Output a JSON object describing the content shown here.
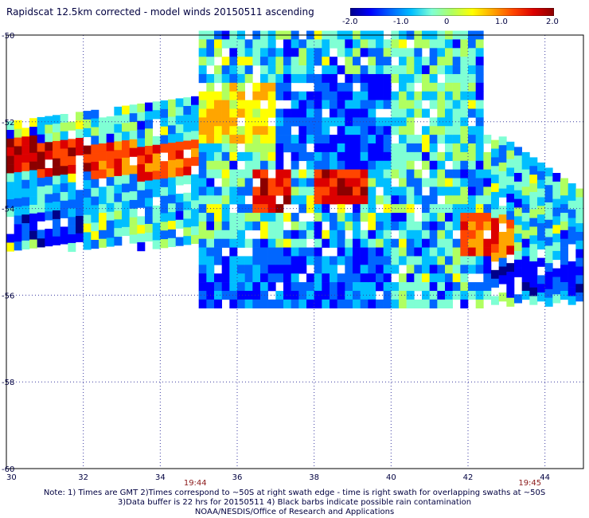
{
  "title": "Rapidscat 12.5km corrected - model winds 20150511 ascending",
  "colorbar": {
    "min": -2.0,
    "max": 2.0,
    "tick_labels": [
      "-2.0",
      "-1.0",
      "0",
      "1.0",
      "2.0"
    ],
    "tick_values": [
      -2.0,
      -1.0,
      0,
      1.0,
      2.0
    ],
    "colors": [
      "#00008b",
      "#0000ff",
      "#0066ff",
      "#00bfff",
      "#7fffd4",
      "#b0ff60",
      "#ffff00",
      "#ffa500",
      "#ff4500",
      "#dc0000",
      "#8b0000"
    ]
  },
  "times": [
    {
      "label": "19:44",
      "lon": 34.9
    },
    {
      "label": "19:45",
      "lon": 43.6
    }
  ],
  "notes": {
    "line1": "Note: 1) Times are GMT 2)Times correspond to ~50S at right swath edge - time is right swath for overlapping swaths at ~50S",
    "line2": "3)Data buffer is 22 hrs for 20150511 4) Black barbs indicate possible rain contamination",
    "line3": "NOAA/NESDIS/Office of Research and Applications"
  },
  "chart_data": {
    "type": "heatmap",
    "title": "Rapidscat 12.5km corrected - model winds 20150511 ascending",
    "x_ticks": [
      "30",
      "32",
      "34",
      "36",
      "38",
      "40",
      "42",
      "44"
    ],
    "x_tick_values": [
      30,
      32,
      34,
      36,
      38,
      40,
      42,
      44
    ],
    "y_ticks": [
      "-50",
      "-52",
      "-54",
      "-56",
      "-58",
      "-60"
    ],
    "y_tick_values": [
      -50,
      -52,
      -54,
      -56,
      -58,
      -60
    ],
    "xlim": [
      30,
      45
    ],
    "ylim": [
      -60,
      -50
    ],
    "grid": true,
    "value_range": [
      -2.0,
      2.0
    ],
    "regions": [
      {
        "lon": [
          30,
          32.2
        ],
        "lat": [
          -52.4,
          -53.2
        ],
        "value": 1.6
      },
      {
        "lon": [
          32.2,
          35.0
        ],
        "lat": [
          -52.5,
          -53.3
        ],
        "value": 1.2
      },
      {
        "lon": [
          30,
          35.0
        ],
        "lat": [
          -53.3,
          -54.1
        ],
        "value": -0.8
      },
      {
        "lon": [
          30,
          32.0
        ],
        "lat": [
          -54.1,
          -54.8
        ],
        "value": -1.6
      },
      {
        "lon": [
          35.0,
          37.0
        ],
        "lat": [
          -51.2,
          -52.6
        ],
        "value": 0.5
      },
      {
        "lon": [
          37.0,
          40.0
        ],
        "lat": [
          -51.0,
          -53.2
        ],
        "value": -1.3
      },
      {
        "lon": [
          36.5,
          37.5
        ],
        "lat": [
          -53.2,
          -54.1
        ],
        "value": 1.6
      },
      {
        "lon": [
          38.0,
          39.5
        ],
        "lat": [
          -53.0,
          -53.9
        ],
        "value": 1.5
      },
      {
        "lon": [
          40.0,
          42.0
        ],
        "lat": [
          -51.0,
          -52.4
        ],
        "value": -0.4
      },
      {
        "lon": [
          41.8,
          43.3
        ],
        "lat": [
          -54.2,
          -55.2
        ],
        "value": 1.1
      },
      {
        "lon": [
          35.0,
          40.0
        ],
        "lat": [
          -55.0,
          -56.3
        ],
        "value": -1.2
      },
      {
        "lon": [
          42.5,
          45.0
        ],
        "lat": [
          -55.2,
          -56.0
        ],
        "value": -1.5
      }
    ]
  }
}
